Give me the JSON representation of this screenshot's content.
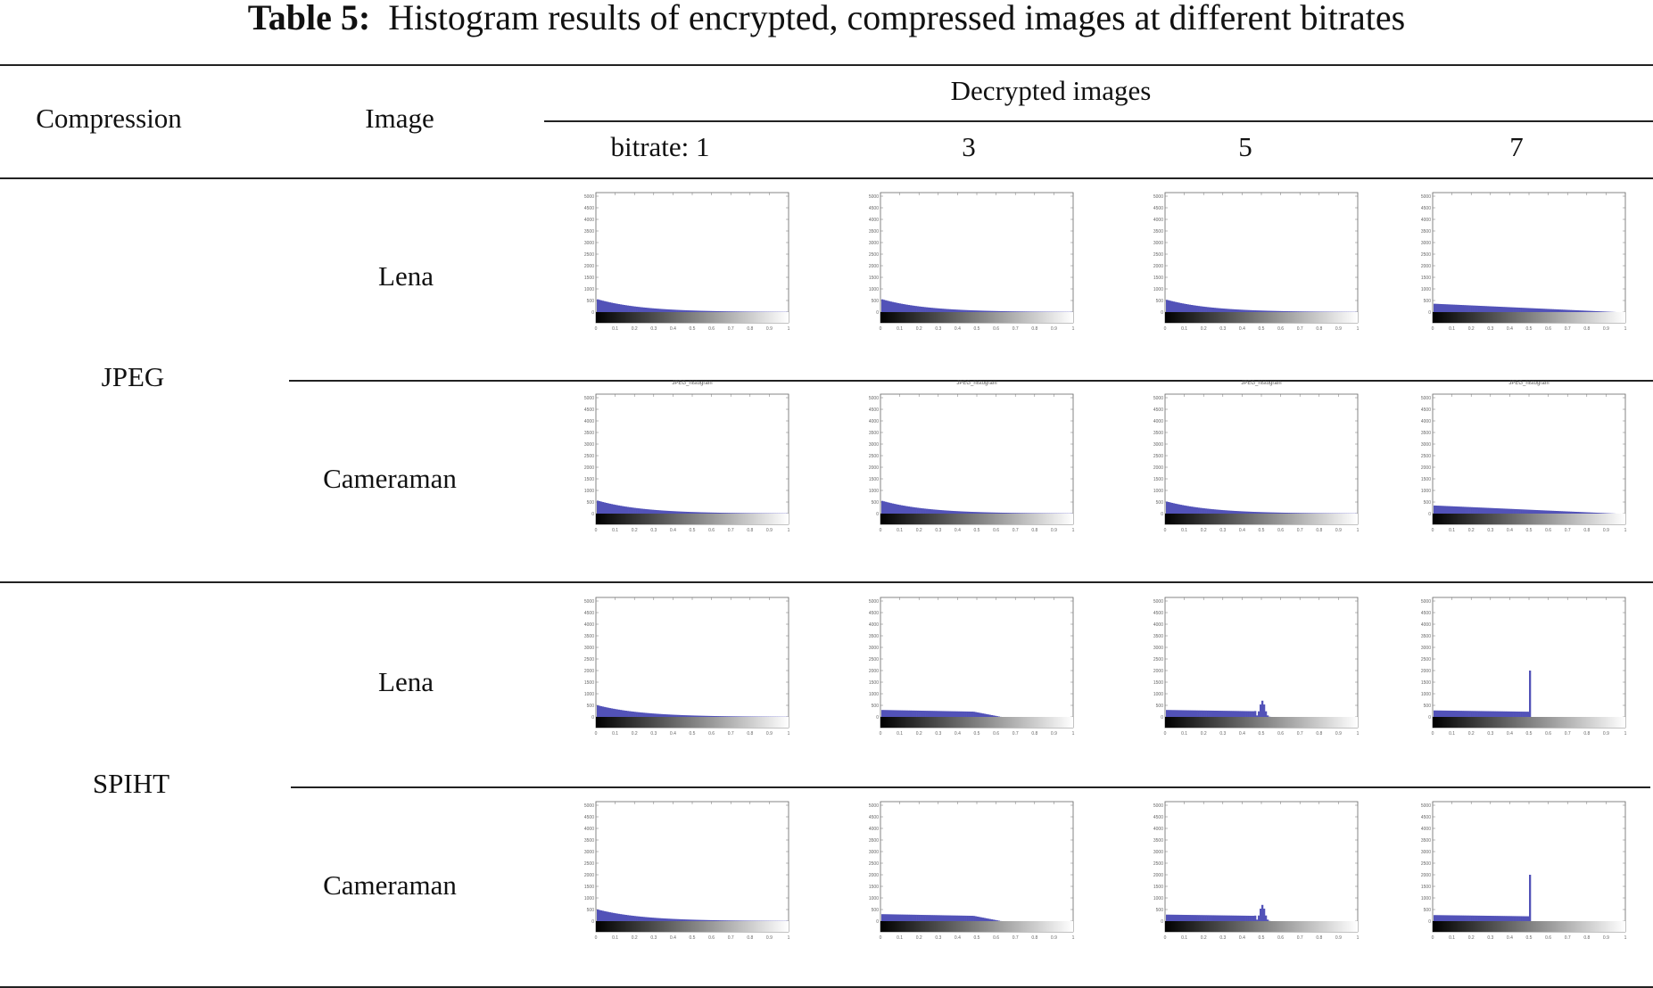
{
  "caption": {
    "label": "Table 5:",
    "text": "Histogram results of encrypted, compressed images at different bitrates"
  },
  "header": {
    "compression": "Compression",
    "image": "Image",
    "decrypted": "Decrypted images",
    "bitrates": [
      "bitrate: 1",
      "3",
      "5",
      "7"
    ]
  },
  "groups": [
    {
      "name": "JPEG",
      "rows": [
        {
          "image": "Lena",
          "plots": [
            {
              "title": "",
              "profile": "decay",
              "amp": 550,
              "spike": 0
            },
            {
              "title": "",
              "profile": "decay",
              "amp": 550,
              "spike": 0
            },
            {
              "title": "",
              "profile": "decay",
              "amp": 530,
              "spike": 0
            },
            {
              "title": "",
              "profile": "flat",
              "amp": 360,
              "spike": 0
            }
          ]
        },
        {
          "image": "Cameraman",
          "plots": [
            {
              "title": "JPEG_histogram",
              "profile": "decay",
              "amp": 560,
              "spike": 0
            },
            {
              "title": "JPEG_histogram",
              "profile": "decay",
              "amp": 550,
              "spike": 0
            },
            {
              "title": "JPEG_histogram",
              "profile": "decay",
              "amp": 520,
              "spike": 0
            },
            {
              "title": "JPEG_histogram",
              "profile": "flat",
              "amp": 350,
              "spike": 0
            }
          ]
        }
      ]
    },
    {
      "name": "SPIHT",
      "rows": [
        {
          "image": "Lena",
          "plots": [
            {
              "title": "",
              "profile": "decay",
              "amp": 500,
              "spike": 0
            },
            {
              "title": "",
              "profile": "plateau",
              "amp": 300,
              "spike": 0
            },
            {
              "title": "",
              "profile": "bump",
              "amp": 300,
              "spike": 700
            },
            {
              "title": "",
              "profile": "needle",
              "amp": 280,
              "spike": 2000
            }
          ]
        },
        {
          "image": "Cameraman",
          "plots": [
            {
              "title": "",
              "profile": "decay",
              "amp": 500,
              "spike": 0
            },
            {
              "title": "",
              "profile": "plateau",
              "amp": 300,
              "spike": 0
            },
            {
              "title": "",
              "profile": "bump",
              "amp": 280,
              "spike": 700
            },
            {
              "title": "",
              "profile": "needle",
              "amp": 260,
              "spike": 2000
            }
          ]
        }
      ]
    }
  ],
  "axis": {
    "yticks": [
      "5000",
      "4500",
      "4000",
      "3500",
      "3000",
      "2500",
      "2000",
      "1500",
      "1000",
      "500",
      "0"
    ],
    "xticks": [
      "0",
      "0.1",
      "0.2",
      "0.3",
      "0.4",
      "0.5",
      "0.6",
      "0.7",
      "0.8",
      "0.9",
      "1"
    ],
    "ymax": 5000,
    "bar_color": "#5252b8"
  }
}
